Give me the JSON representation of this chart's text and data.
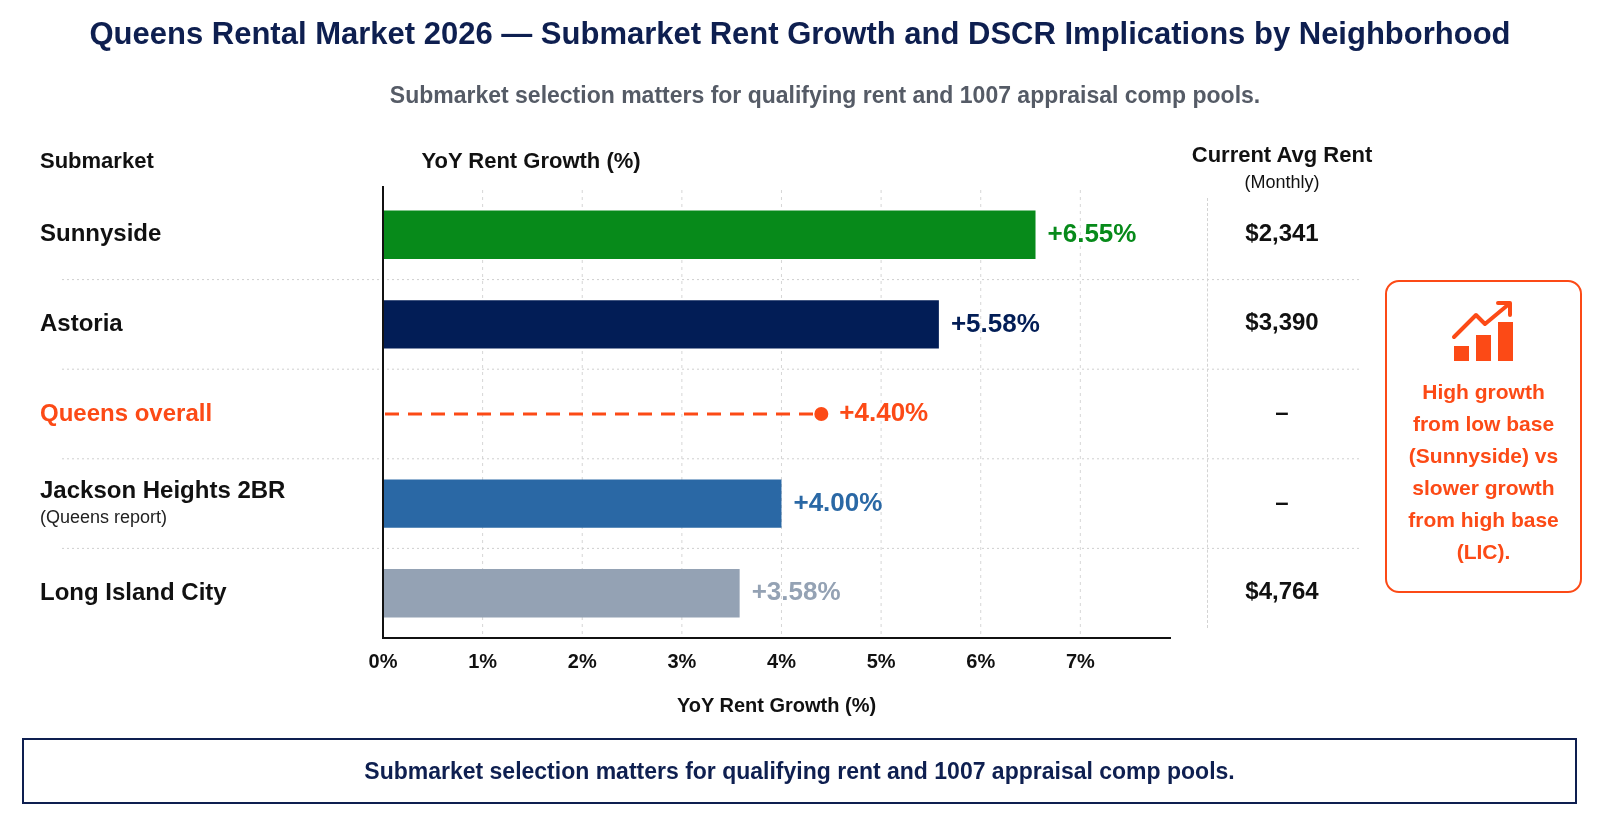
{
  "chart_data": [
    {
      "type": "bar",
      "orientation": "horizontal",
      "title": "Queens Rental Market 2026 — Submarket Rent Growth and DSCR Implications by Neighborhood",
      "subtitle": "Submarket selection matters for qualifying rent and 1007 appraisal comp pools.",
      "ylabel": "Submarket",
      "xlabel": "YoY Rent Growth (%)",
      "annotations": [
        "YoY Rent Growth (%)",
        "Submarket selection matters for qualifying rent and 1007 appraisal comp pools."
      ],
      "categories": [
        "Sunnyside",
        "Astoria",
        "Queens overall",
        "Jackson Heights 2BR\n(Queens report)",
        "Long Island City"
      ],
      "series": [
        {
          "type": "bar",
          "colors": [
            "#078a1a",
            "#021d56",
            null,
            "#2a68a5",
            "#94a2b4"
          ],
          "values": [
            6.55,
            5.58,
            null,
            4.0,
            3.58
          ],
          "value_labels": [
            "+6.55%",
            "+5.58%",
            null,
            "+4.00%",
            "+3.58%"
          ]
        },
        {
          "type": "lollipop",
          "color": "#fc4a16",
          "marker": "circle",
          "line_style": "dashed",
          "values": [
            null,
            null,
            4.4,
            null,
            null
          ],
          "value_labels": [
            null,
            null,
            "+4.40%",
            null,
            null
          ]
        }
      ],
      "xlim": [
        0,
        7.9
      ],
      "xticks": [
        {
          "value": 0,
          "label": "0%"
        },
        {
          "value": 1,
          "label": "1%"
        },
        {
          "value": 2,
          "label": "2%"
        },
        {
          "value": 3,
          "label": "3%"
        },
        {
          "value": 4,
          "label": "4%"
        },
        {
          "value": 5,
          "label": "5%"
        },
        {
          "value": 6,
          "label": "6%"
        },
        {
          "value": 7,
          "label": "7%"
        }
      ],
      "grid": true
    },
    {
      "type": "other",
      "title": "Current Avg Rent",
      "subtitle": "(Monthly)",
      "annotations": [
        "$2,341",
        "$3,390",
        "–",
        "–",
        "$4,764"
      ]
    },
    {
      "type": "other",
      "annotations": [
        "High growth from low base (Sunnyside) vs slower growth from high base (LIC)."
      ]
    }
  ]
}
